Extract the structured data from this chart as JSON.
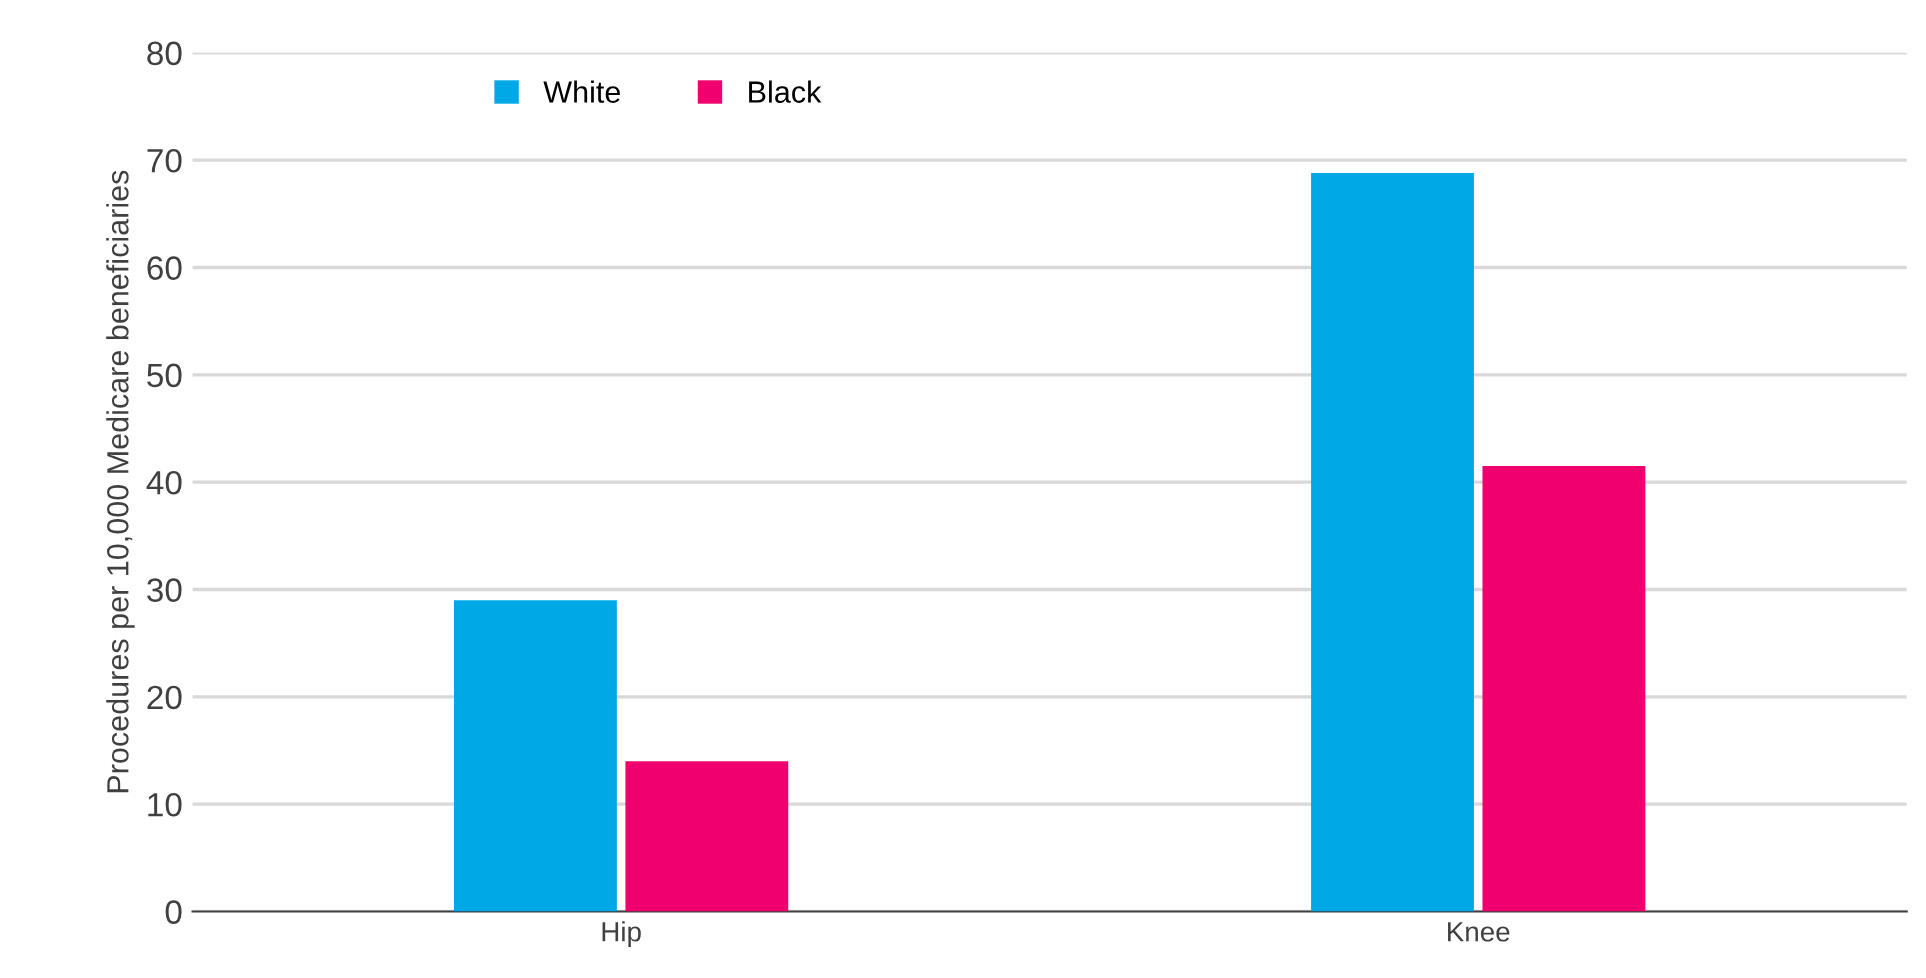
{
  "chart_data": {
    "type": "bar",
    "ylabel": "Procedures per 10,000 Medicare beneficiaries",
    "categories": [
      "Hip",
      "Knee"
    ],
    "series": [
      {
        "name": "White",
        "color": "#00a8e6",
        "values": [
          29,
          68.8
        ]
      },
      {
        "name": "Black",
        "color": "#f0006e",
        "values": [
          14,
          41.5
        ]
      }
    ],
    "ylim": [
      0,
      80
    ],
    "yticks": [
      0,
      10,
      20,
      30,
      40,
      50,
      60,
      70,
      80
    ],
    "grid": "y",
    "legend": "top left"
  }
}
